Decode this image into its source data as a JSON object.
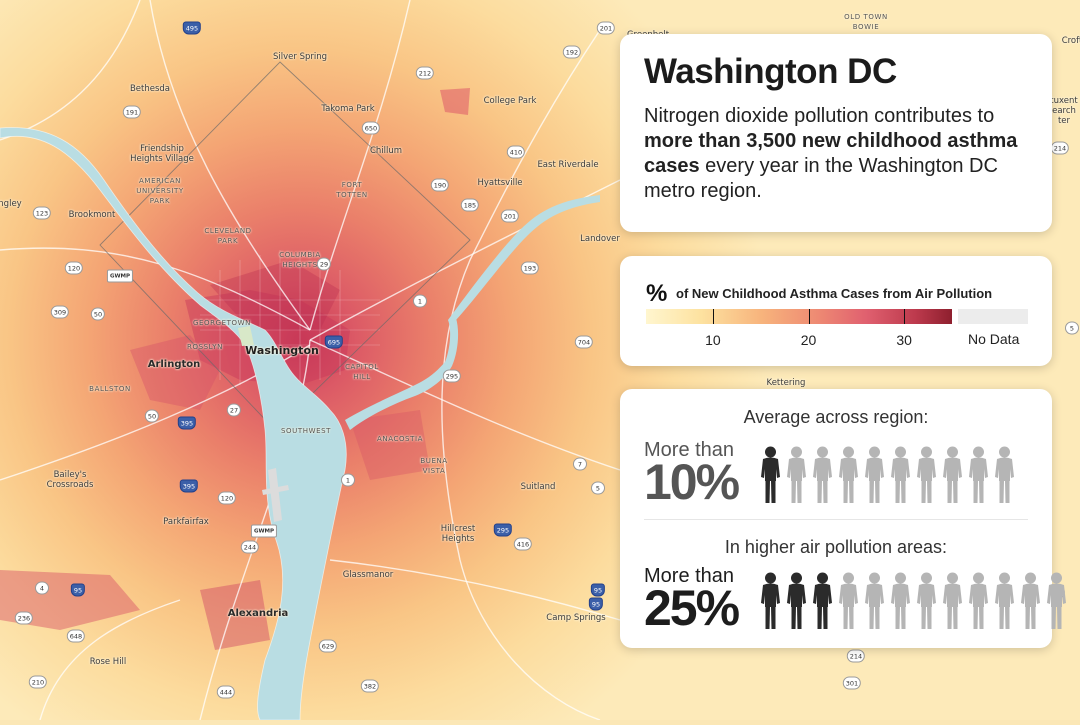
{
  "info_panel": {
    "title": "Washington DC",
    "description_prefix": "Nitrogen dioxide pollution contributes to ",
    "description_bold": "more than 3,500 new childhood asthma cases",
    "description_suffix": " every year in the Washington DC metro region."
  },
  "legend": {
    "symbol": "%",
    "title": "of New Childhood Asthma Cases from Air Pollution",
    "ticks": [
      "10",
      "20",
      "30"
    ],
    "tick_values": [
      10,
      20,
      30
    ],
    "range": [
      3,
      35
    ],
    "no_data_label": "No Data",
    "colors": [
      "#fff6cf",
      "#fde2a0",
      "#f7b37c",
      "#ee8a73",
      "#e0606f",
      "#bd3a4d",
      "#8e1f2e"
    ],
    "no_data_color": "#ececec"
  },
  "stats": [
    {
      "heading": "Average across region:",
      "prefix": "More than",
      "value": "10%",
      "highlighted": 1,
      "total": 10
    },
    {
      "heading": "In higher air pollution areas:",
      "prefix": "More than",
      "value": "25%",
      "highlighted": 3,
      "total": 12
    }
  ],
  "map": {
    "water_color": "#b9dde3",
    "labels": [
      {
        "text": "Washington",
        "kind": "major"
      },
      {
        "text": "Arlington",
        "kind": "medium"
      },
      {
        "text": "Alexandria",
        "kind": "medium"
      },
      {
        "text": "Silver Spring",
        "kind": "small"
      },
      {
        "text": "Bethesda",
        "kind": "small"
      },
      {
        "text": "Takoma Park",
        "kind": "small"
      },
      {
        "text": "College Park",
        "kind": "small"
      },
      {
        "text": "Chillum",
        "kind": "small"
      },
      {
        "text": "Friendship\nHeights Village",
        "kind": "small"
      },
      {
        "text": "AMERICAN\nUNIVERSITY\nPARK",
        "kind": "caps"
      },
      {
        "text": "FORT\nTOTTEN",
        "kind": "caps"
      },
      {
        "text": "Hyattsville",
        "kind": "small"
      },
      {
        "text": "East Riverdale",
        "kind": "small"
      },
      {
        "text": "Brookmont",
        "kind": "small"
      },
      {
        "text": "CLEVELAND\nPARK",
        "kind": "caps"
      },
      {
        "text": "COLUMBIA\nHEIGHTS",
        "kind": "caps"
      },
      {
        "text": "Landover",
        "kind": "small"
      },
      {
        "text": "GEORGETOWN",
        "kind": "caps"
      },
      {
        "text": "ROSSLYN",
        "kind": "caps"
      },
      {
        "text": "BALLSTON",
        "kind": "caps"
      },
      {
        "text": "CAPITOL\nHILL",
        "kind": "caps"
      },
      {
        "text": "SOUTHWEST",
        "kind": "caps"
      },
      {
        "text": "ANACOSTIA",
        "kind": "caps"
      },
      {
        "text": "BUENA\nVISTA",
        "kind": "caps"
      },
      {
        "text": "Bailey's\nCrossroads",
        "kind": "small"
      },
      {
        "text": "Suitland",
        "kind": "small"
      },
      {
        "text": "Parkfairfax",
        "kind": "small"
      },
      {
        "text": "Hillcrest\nHeights",
        "kind": "small"
      },
      {
        "text": "Glassmanor",
        "kind": "small"
      },
      {
        "text": "Camp Springs",
        "kind": "small"
      },
      {
        "text": "Rose Hill",
        "kind": "small"
      },
      {
        "text": "Kettering",
        "kind": "small"
      },
      {
        "text": "Greenbelt",
        "kind": "small"
      },
      {
        "text": "OLD TOWN\nBOWIE",
        "kind": "caps"
      },
      {
        "text": "ngley",
        "kind": "small"
      },
      {
        "text": "Croft",
        "kind": "small"
      },
      {
        "text": "tuxent\nearch\nter",
        "kind": "small"
      }
    ],
    "shields": [
      {
        "text": "495",
        "kind": "interstate"
      },
      {
        "text": "192",
        "kind": "state"
      },
      {
        "text": "201",
        "kind": "state"
      },
      {
        "text": "212",
        "kind": "state"
      },
      {
        "text": "191",
        "kind": "state"
      },
      {
        "text": "650",
        "kind": "state"
      },
      {
        "text": "410",
        "kind": "state"
      },
      {
        "text": "190",
        "kind": "state"
      },
      {
        "text": "185",
        "kind": "state"
      },
      {
        "text": "193",
        "kind": "state"
      },
      {
        "text": "123",
        "kind": "state"
      },
      {
        "text": "201",
        "kind": "state"
      },
      {
        "text": "120",
        "kind": "state"
      },
      {
        "text": "GWMP",
        "kind": "gw"
      },
      {
        "text": "50",
        "kind": "state"
      },
      {
        "text": "309",
        "kind": "state"
      },
      {
        "text": "1",
        "kind": "state"
      },
      {
        "text": "29",
        "kind": "state"
      },
      {
        "text": "695",
        "kind": "interstate"
      },
      {
        "text": "704",
        "kind": "state"
      },
      {
        "text": "295",
        "kind": "state"
      },
      {
        "text": "27",
        "kind": "state"
      },
      {
        "text": "50",
        "kind": "state"
      },
      {
        "text": "395",
        "kind": "interstate"
      },
      {
        "text": "395",
        "kind": "interstate"
      },
      {
        "text": "120",
        "kind": "state"
      },
      {
        "text": "GWMP",
        "kind": "gw"
      },
      {
        "text": "244",
        "kind": "state"
      },
      {
        "text": "7",
        "kind": "state"
      },
      {
        "text": "1",
        "kind": "state"
      },
      {
        "text": "295",
        "kind": "interstate"
      },
      {
        "text": "416",
        "kind": "state"
      },
      {
        "text": "5",
        "kind": "state"
      },
      {
        "text": "4",
        "kind": "state"
      },
      {
        "text": "95",
        "kind": "interstate"
      },
      {
        "text": "236",
        "kind": "state"
      },
      {
        "text": "648",
        "kind": "state"
      },
      {
        "text": "95",
        "kind": "interstate"
      },
      {
        "text": "337",
        "kind": "state"
      },
      {
        "text": "5",
        "kind": "state"
      },
      {
        "text": "214",
        "kind": "state"
      },
      {
        "text": "214",
        "kind": "state"
      },
      {
        "text": "301",
        "kind": "state"
      },
      {
        "text": "382",
        "kind": "state"
      },
      {
        "text": "210",
        "kind": "state"
      },
      {
        "text": "444",
        "kind": "state"
      },
      {
        "text": "629",
        "kind": "state"
      },
      {
        "text": "95",
        "kind": "interstate"
      },
      {
        "text": "50",
        "kind": "state"
      }
    ]
  }
}
